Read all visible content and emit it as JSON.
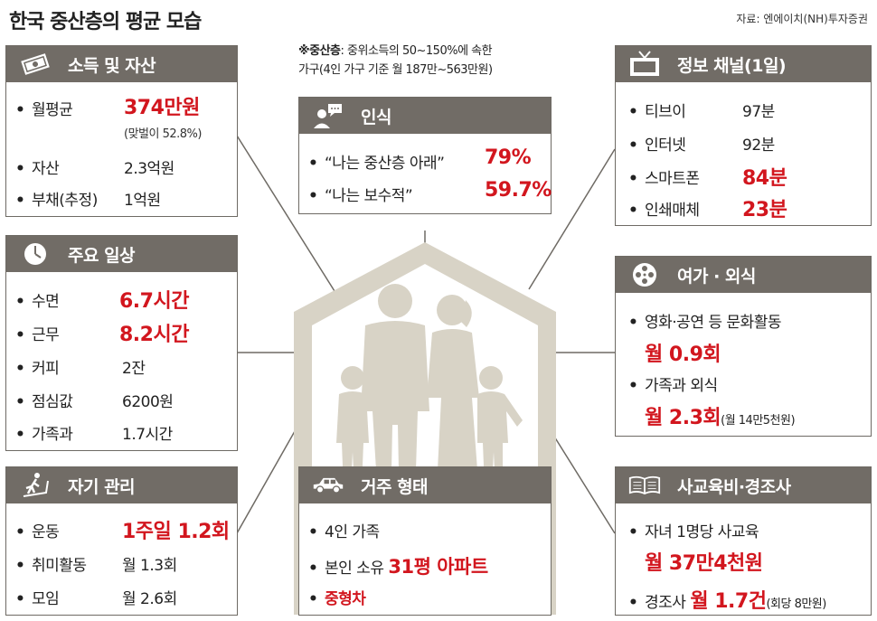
{
  "title": "한국 중산층의 평균 모습",
  "source": "자료: 엔에이치(NH)투자증권",
  "note": {
    "bold": "※중산층",
    "line1_rest": ": 중위소득의 50~150%에 속한",
    "line2": "가구(4인 가구 기준 월 187만~563만원)"
  },
  "colors": {
    "header": "#716c66",
    "accent_red": "#d2161e",
    "house": "#d8d3c6"
  },
  "income": {
    "title": "소득 및 자산",
    "icon": "money-icon",
    "monthly_label": "월평균",
    "monthly_value": "374만원",
    "monthly_note": "(맞벌이 52.8%)",
    "assets_label": "자산",
    "assets_value": "2.3억원",
    "debt_label": "부채(추정)",
    "debt_value": "1억원"
  },
  "daily": {
    "title": "주요 일상",
    "icon": "clock-icon",
    "items": [
      {
        "label": "수면",
        "value": "6.7시간",
        "highlight": true
      },
      {
        "label": "근무",
        "value": "8.2시간",
        "highlight": true
      },
      {
        "label": "커피",
        "value": "2잔",
        "highlight": false
      },
      {
        "label": "점심값",
        "value": "6200원",
        "highlight": false
      },
      {
        "label": "가족과",
        "value": "1.7시간",
        "highlight": false
      }
    ]
  },
  "self": {
    "title": "자기 관리",
    "icon": "treadmill-icon",
    "items": [
      {
        "label": "운동",
        "value": "1주일 1.2회",
        "highlight": true
      },
      {
        "label": "취미활동",
        "value": "월 1.3회",
        "highlight": false
      },
      {
        "label": "모임",
        "value": "월 2.6회",
        "highlight": false
      }
    ]
  },
  "perception": {
    "title": "인식",
    "icon": "speech-person-icon",
    "items": [
      {
        "label": "“나는 중산층 아래”",
        "value": "79%"
      },
      {
        "label": "“나는 보수적”",
        "value": "59.7%"
      }
    ]
  },
  "housing": {
    "title": "거주 형태",
    "icon": "car-icon",
    "line1": "4인 가족",
    "line2_prefix": "본인 소유",
    "line2_value": "31평 아파트",
    "line3": "중형차"
  },
  "info": {
    "title": "정보 채널(1일)",
    "icon": "tv-icon",
    "items": [
      {
        "label": "티브이",
        "value": "97분",
        "highlight": false
      },
      {
        "label": "인터넷",
        "value": "92분",
        "highlight": false
      },
      {
        "label": "스마트폰",
        "value": "84분",
        "highlight": true
      },
      {
        "label": "인쇄매체",
        "value": "23분",
        "highlight": true
      }
    ]
  },
  "leisure": {
    "title": "여가 · 외식",
    "icon": "film-reel-icon",
    "culture_label": "영화·공연 등 문화활동",
    "culture_value": "월 0.9회",
    "dining_label": "가족과 외식",
    "dining_value": "월 2.3회",
    "dining_note": "(월 14만5천원)"
  },
  "education": {
    "title": "사교육비·경조사",
    "icon": "book-icon",
    "tutoring_label": "자녀 1명당 사교육",
    "tutoring_value": "월 37만4천원",
    "events_label": "경조사",
    "events_value": "월 1.7건",
    "events_note": "(회당 8만원)"
  }
}
